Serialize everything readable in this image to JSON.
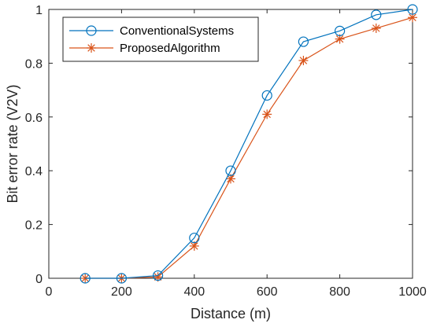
{
  "chart_data": {
    "type": "line",
    "title": "",
    "xlabel": "Distance (m)",
    "ylabel": "Bit error rate (V2V)",
    "xlim": [
      0,
      1000
    ],
    "ylim": [
      0,
      1
    ],
    "x_ticks": [
      0,
      200,
      400,
      600,
      800,
      1000
    ],
    "y_ticks": [
      0,
      0.2,
      0.4,
      0.6,
      0.8,
      1
    ],
    "x_tick_labels": [
      "0",
      "200",
      "400",
      "600",
      "800",
      "1000"
    ],
    "y_tick_labels": [
      "0",
      "0.2",
      "0.4",
      "0.6",
      "0.8",
      "1"
    ],
    "grid": false,
    "legend_position": "top-left",
    "x": [
      100,
      200,
      300,
      400,
      500,
      600,
      700,
      800,
      900,
      1000
    ],
    "series": [
      {
        "name": "ConventionalSystems",
        "marker": "circle",
        "color": "#0072BD",
        "values": [
          0,
          0,
          0.01,
          0.15,
          0.4,
          0.68,
          0.88,
          0.92,
          0.98,
          1.0
        ]
      },
      {
        "name": "ProposedAlgorithm",
        "marker": "asterisk",
        "color": "#D95319",
        "values": [
          0,
          0,
          0.005,
          0.12,
          0.37,
          0.61,
          0.81,
          0.89,
          0.93,
          0.97
        ]
      }
    ]
  }
}
